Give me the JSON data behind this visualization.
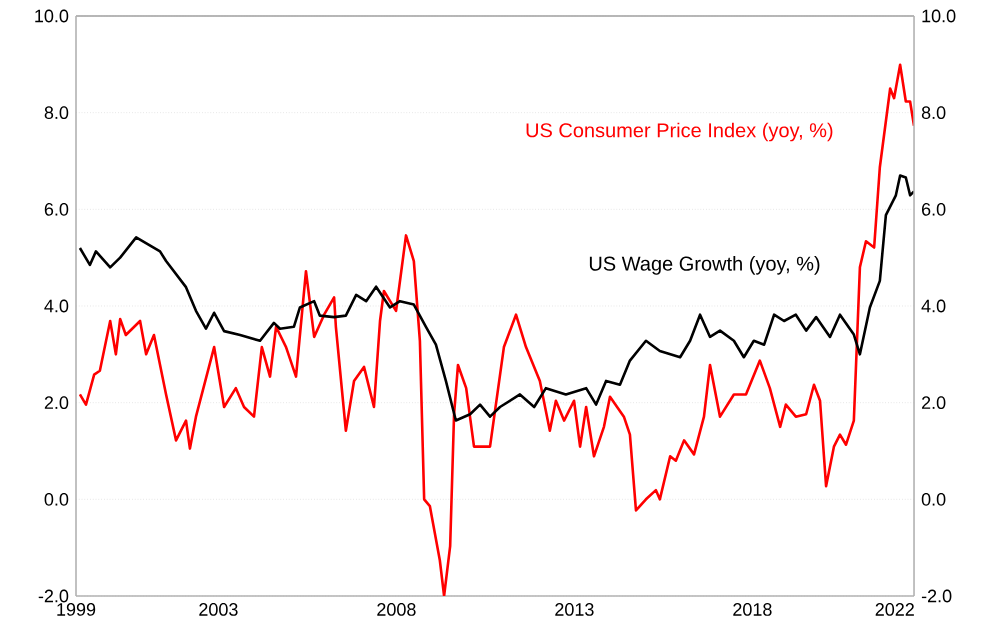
{
  "chart_data": {
    "type": "line",
    "series": [
      {
        "name": "US Consumer Price Index (yoy, %)",
        "color": "#ff0000",
        "x": [
          1999.11,
          1999.28,
          1999.51,
          1999.67,
          1999.96,
          2000.12,
          2000.24,
          2000.4,
          2000.8,
          2000.97,
          2001.19,
          2001.53,
          2001.81,
          2002.09,
          2002.2,
          2002.37,
          2002.88,
          2003.16,
          2003.49,
          2003.72,
          2004.0,
          2004.22,
          2004.45,
          2004.62,
          2004.9,
          2005.18,
          2005.46,
          2005.69,
          2005.97,
          2006.25,
          2006.3,
          2006.58,
          2006.81,
          2007.09,
          2007.37,
          2007.54,
          2007.65,
          2007.99,
          2008.27,
          2008.49,
          2008.66,
          2008.78,
          2008.94,
          2009.22,
          2009.34,
          2009.51,
          2009.62,
          2009.73,
          2009.96,
          2010.18,
          2010.63,
          2011.02,
          2011.36,
          2011.64,
          2012.03,
          2012.31,
          2012.48,
          2012.71,
          2012.99,
          2013.16,
          2013.33,
          2013.55,
          2013.83,
          2014.0,
          2014.39,
          2014.56,
          2014.73,
          2015.01,
          2015.29,
          2015.4,
          2015.69,
          2015.85,
          2016.08,
          2016.36,
          2016.64,
          2016.81,
          2017.09,
          2017.48,
          2017.82,
          2018.21,
          2018.49,
          2018.78,
          2018.94,
          2019.22,
          2019.51,
          2019.73,
          2019.9,
          2020.07,
          2020.29,
          2020.46,
          2020.63,
          2020.85,
          2021.02,
          2021.19,
          2021.42,
          2021.58,
          2021.87,
          2021.98,
          2022.15,
          2022.31,
          2022.43,
          2022.54
        ],
        "values": [
          2.17,
          1.96,
          2.58,
          2.66,
          3.69,
          3.0,
          3.73,
          3.4,
          3.69,
          3.0,
          3.4,
          2.17,
          1.22,
          1.63,
          1.05,
          1.71,
          3.15,
          1.91,
          2.3,
          1.91,
          1.71,
          3.15,
          2.54,
          3.57,
          3.15,
          2.54,
          4.72,
          3.36,
          3.82,
          4.18,
          3.57,
          1.42,
          2.45,
          2.74,
          1.91,
          3.69,
          4.31,
          3.9,
          5.46,
          4.93,
          3.28,
          0.0,
          -0.14,
          -1.26,
          -2.0,
          -0.97,
          1.76,
          2.78,
          2.3,
          1.09,
          1.09,
          3.15,
          3.82,
          3.15,
          2.45,
          1.42,
          2.04,
          1.63,
          2.04,
          1.09,
          1.91,
          0.89,
          1.5,
          2.12,
          1.71,
          1.34,
          -0.23,
          0.0,
          0.19,
          0.0,
          0.89,
          0.8,
          1.22,
          0.93,
          1.71,
          2.78,
          1.71,
          2.17,
          2.17,
          2.87,
          2.3,
          1.5,
          1.96,
          1.71,
          1.76,
          2.37,
          2.04,
          0.27,
          1.09,
          1.34,
          1.13,
          1.63,
          4.8,
          5.34,
          5.21,
          6.87,
          8.5,
          8.3,
          8.99,
          8.23,
          8.23,
          7.73
        ]
      },
      {
        "name": "US Wage Growth (yoy, %)",
        "color": "#000000",
        "x": [
          1999.11,
          1999.39,
          1999.56,
          1999.96,
          2000.24,
          2000.69,
          2001.36,
          2001.53,
          2002.09,
          2002.37,
          2002.65,
          2002.88,
          2003.16,
          2003.61,
          2004.17,
          2004.56,
          2004.73,
          2005.12,
          2005.29,
          2005.69,
          2005.85,
          2006.25,
          2006.58,
          2006.87,
          2007.15,
          2007.43,
          2007.82,
          2008.1,
          2008.49,
          2008.83,
          2009.11,
          2009.39,
          2009.67,
          2010.07,
          2010.35,
          2010.63,
          2010.91,
          2011.47,
          2011.87,
          2012.2,
          2012.76,
          2013.33,
          2013.61,
          2013.89,
          2014.28,
          2014.56,
          2015.01,
          2015.4,
          2015.97,
          2016.25,
          2016.53,
          2016.81,
          2017.09,
          2017.48,
          2017.76,
          2018.04,
          2018.33,
          2018.61,
          2018.89,
          2019.22,
          2019.51,
          2019.79,
          2020.18,
          2020.46,
          2020.85,
          2021.02,
          2021.3,
          2021.58,
          2021.75,
          2022.03,
          2022.15,
          2022.31,
          2022.43,
          2022.54
        ],
        "values": [
          5.2,
          4.85,
          5.13,
          4.8,
          5.0,
          5.42,
          5.13,
          4.93,
          4.39,
          3.9,
          3.53,
          3.86,
          3.48,
          3.4,
          3.28,
          3.65,
          3.53,
          3.57,
          3.97,
          4.1,
          3.8,
          3.77,
          3.8,
          4.23,
          4.1,
          4.4,
          3.97,
          4.1,
          4.03,
          3.57,
          3.2,
          2.45,
          1.63,
          1.76,
          1.96,
          1.71,
          1.91,
          2.17,
          1.91,
          2.3,
          2.17,
          2.3,
          1.96,
          2.45,
          2.37,
          2.87,
          3.28,
          3.07,
          2.94,
          3.28,
          3.82,
          3.36,
          3.49,
          3.28,
          2.94,
          3.28,
          3.2,
          3.82,
          3.69,
          3.82,
          3.49,
          3.77,
          3.36,
          3.82,
          3.41,
          3.0,
          3.97,
          4.52,
          5.88,
          6.29,
          6.7,
          6.66,
          6.29,
          6.37
        ]
      }
    ],
    "xlim": [
      1999,
      2022.54
    ],
    "xticks": [
      1999,
      2003,
      2008,
      2013,
      2018,
      2022
    ],
    "ylim": [
      -2,
      10
    ],
    "yticks": [
      {
        "value": -2,
        "label": "-2.0"
      },
      {
        "value": 0,
        "label": "0.0"
      },
      {
        "value": 2,
        "label": "2.0"
      },
      {
        "value": 4,
        "label": "4.0"
      },
      {
        "value": 6,
        "label": "6.0"
      },
      {
        "value": 8,
        "label": "8.0"
      },
      {
        "value": 10,
        "label": "10.0"
      }
    ],
    "y2lim": [
      -2,
      10
    ],
    "y2ticks": [
      {
        "value": -2,
        "label": "-2.0"
      },
      {
        "value": 0,
        "label": "0.0"
      },
      {
        "value": 2,
        "label": "2.0"
      },
      {
        "value": 4,
        "label": "4.0"
      },
      {
        "value": 6,
        "label": "6.0"
      },
      {
        "value": 8,
        "label": "8.0"
      },
      {
        "value": 10,
        "label": "10.0"
      }
    ],
    "grid": "y",
    "legend": false,
    "marker": "none",
    "line_style": "solid"
  }
}
